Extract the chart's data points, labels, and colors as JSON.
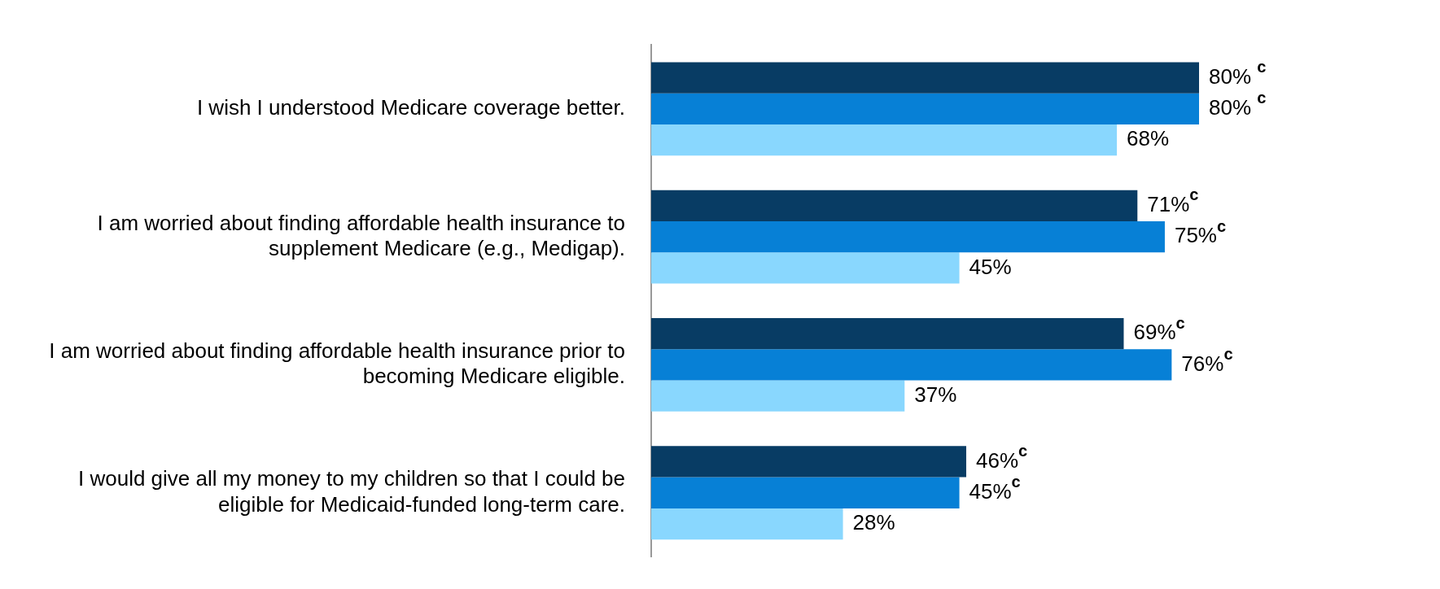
{
  "chart_data": {
    "type": "bar",
    "orientation": "horizontal",
    "categories": [
      "I wish I understood Medicare coverage better.",
      "I am worried about finding affordable health insurance to supplement Medicare (e.g., Medigap).",
      "I am worried about finding affordable health insurance prior to becoming Medicare eligible.",
      "I would give all my money to my children so that I could be eligible for Medicaid-funded long-term care."
    ],
    "series": [
      {
        "color": "#083c64",
        "values": [
          80,
          71,
          69,
          46
        ],
        "value_labels": [
          "80% $^{c}$",
          "71%$^{c}$",
          "69%$^{c}$",
          "46%$^{c}$"
        ]
      },
      {
        "color": "#0780d6",
        "values": [
          80,
          75,
          76,
          45
        ],
        "value_labels": [
          "80% $^{c}$",
          "75%$^{c}$",
          "76%$^{c}$",
          "45%$^{c}$"
        ]
      },
      {
        "color": "#89d7fe",
        "values": [
          68,
          45,
          37,
          28
        ],
        "value_labels": [
          "68%",
          "45%",
          "37%",
          "28%"
        ]
      }
    ],
    "grid": false,
    "legend": false
  }
}
